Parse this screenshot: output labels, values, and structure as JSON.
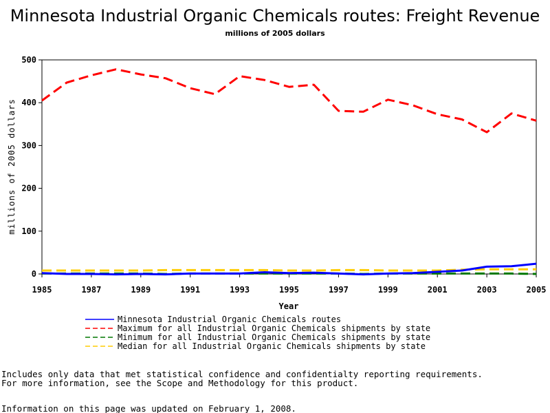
{
  "chart_data": {
    "type": "line",
    "title": "Minnesota Industrial Organic Chemicals routes: Freight Revenue",
    "subtitle": "millions of 2005 dollars",
    "xlabel": "Year",
    "ylabel": "millions of 2005 dollars",
    "xlim": [
      1985,
      2005
    ],
    "ylim": [
      0,
      500
    ],
    "x_ticks": [
      "1985",
      "1987",
      "1989",
      "1991",
      "1993",
      "1995",
      "1997",
      "1999",
      "2001",
      "2003",
      "2005"
    ],
    "y_ticks": [
      "0",
      "100",
      "200",
      "300",
      "400",
      "500"
    ],
    "grid": false,
    "legend_position": "bottom",
    "x": [
      1985,
      1986,
      1987,
      1988,
      1989,
      1990,
      1991,
      1992,
      1993,
      1994,
      1995,
      1996,
      1997,
      1998,
      1999,
      2000,
      2001,
      2002,
      2003,
      2004,
      2005
    ],
    "series": [
      {
        "name": "Minnesota Industrial Organic Chemicals routes",
        "color": "#0000ff",
        "dash": "solid",
        "values": [
          2,
          0,
          0,
          -1,
          0,
          -1,
          1,
          1,
          1,
          4,
          2,
          3,
          1,
          -1,
          1,
          2,
          5,
          8,
          17,
          18,
          24
        ]
      },
      {
        "name": "Maximum for all Industrial Organic Chemicals shipments by state",
        "color": "#ff0000",
        "dash": "dashed",
        "values": [
          405,
          447,
          464,
          478,
          466,
          457,
          434,
          420,
          462,
          453,
          437,
          442,
          381,
          379,
          407,
          394,
          373,
          361,
          331,
          375,
          358
        ]
      },
      {
        "name": "Minimum for all Industrial Organic Chemicals shipments by state",
        "color": "#007700",
        "dash": "dashed",
        "values": [
          1,
          1,
          1,
          1,
          1,
          0,
          1,
          1,
          1,
          1,
          1,
          1,
          1,
          0,
          1,
          1,
          1,
          1,
          1,
          1,
          0
        ]
      },
      {
        "name": "Median for all Industrial Organic Chemicals shipments by state",
        "color": "#ffcc00",
        "dash": "dashed",
        "values": [
          8,
          8,
          8,
          8,
          8,
          9,
          9,
          9,
          9,
          9,
          8,
          8,
          9,
          9,
          8,
          8,
          8,
          10,
          11,
          11,
          11
        ]
      }
    ]
  },
  "footer": {
    "note_line1": "Includes only data that met statistical confidence and confidentialty reporting requirements.",
    "note_line2": "For more information, see the Scope and Methodology for this product.",
    "updated": "Information on this page was updated on February 1, 2008."
  }
}
